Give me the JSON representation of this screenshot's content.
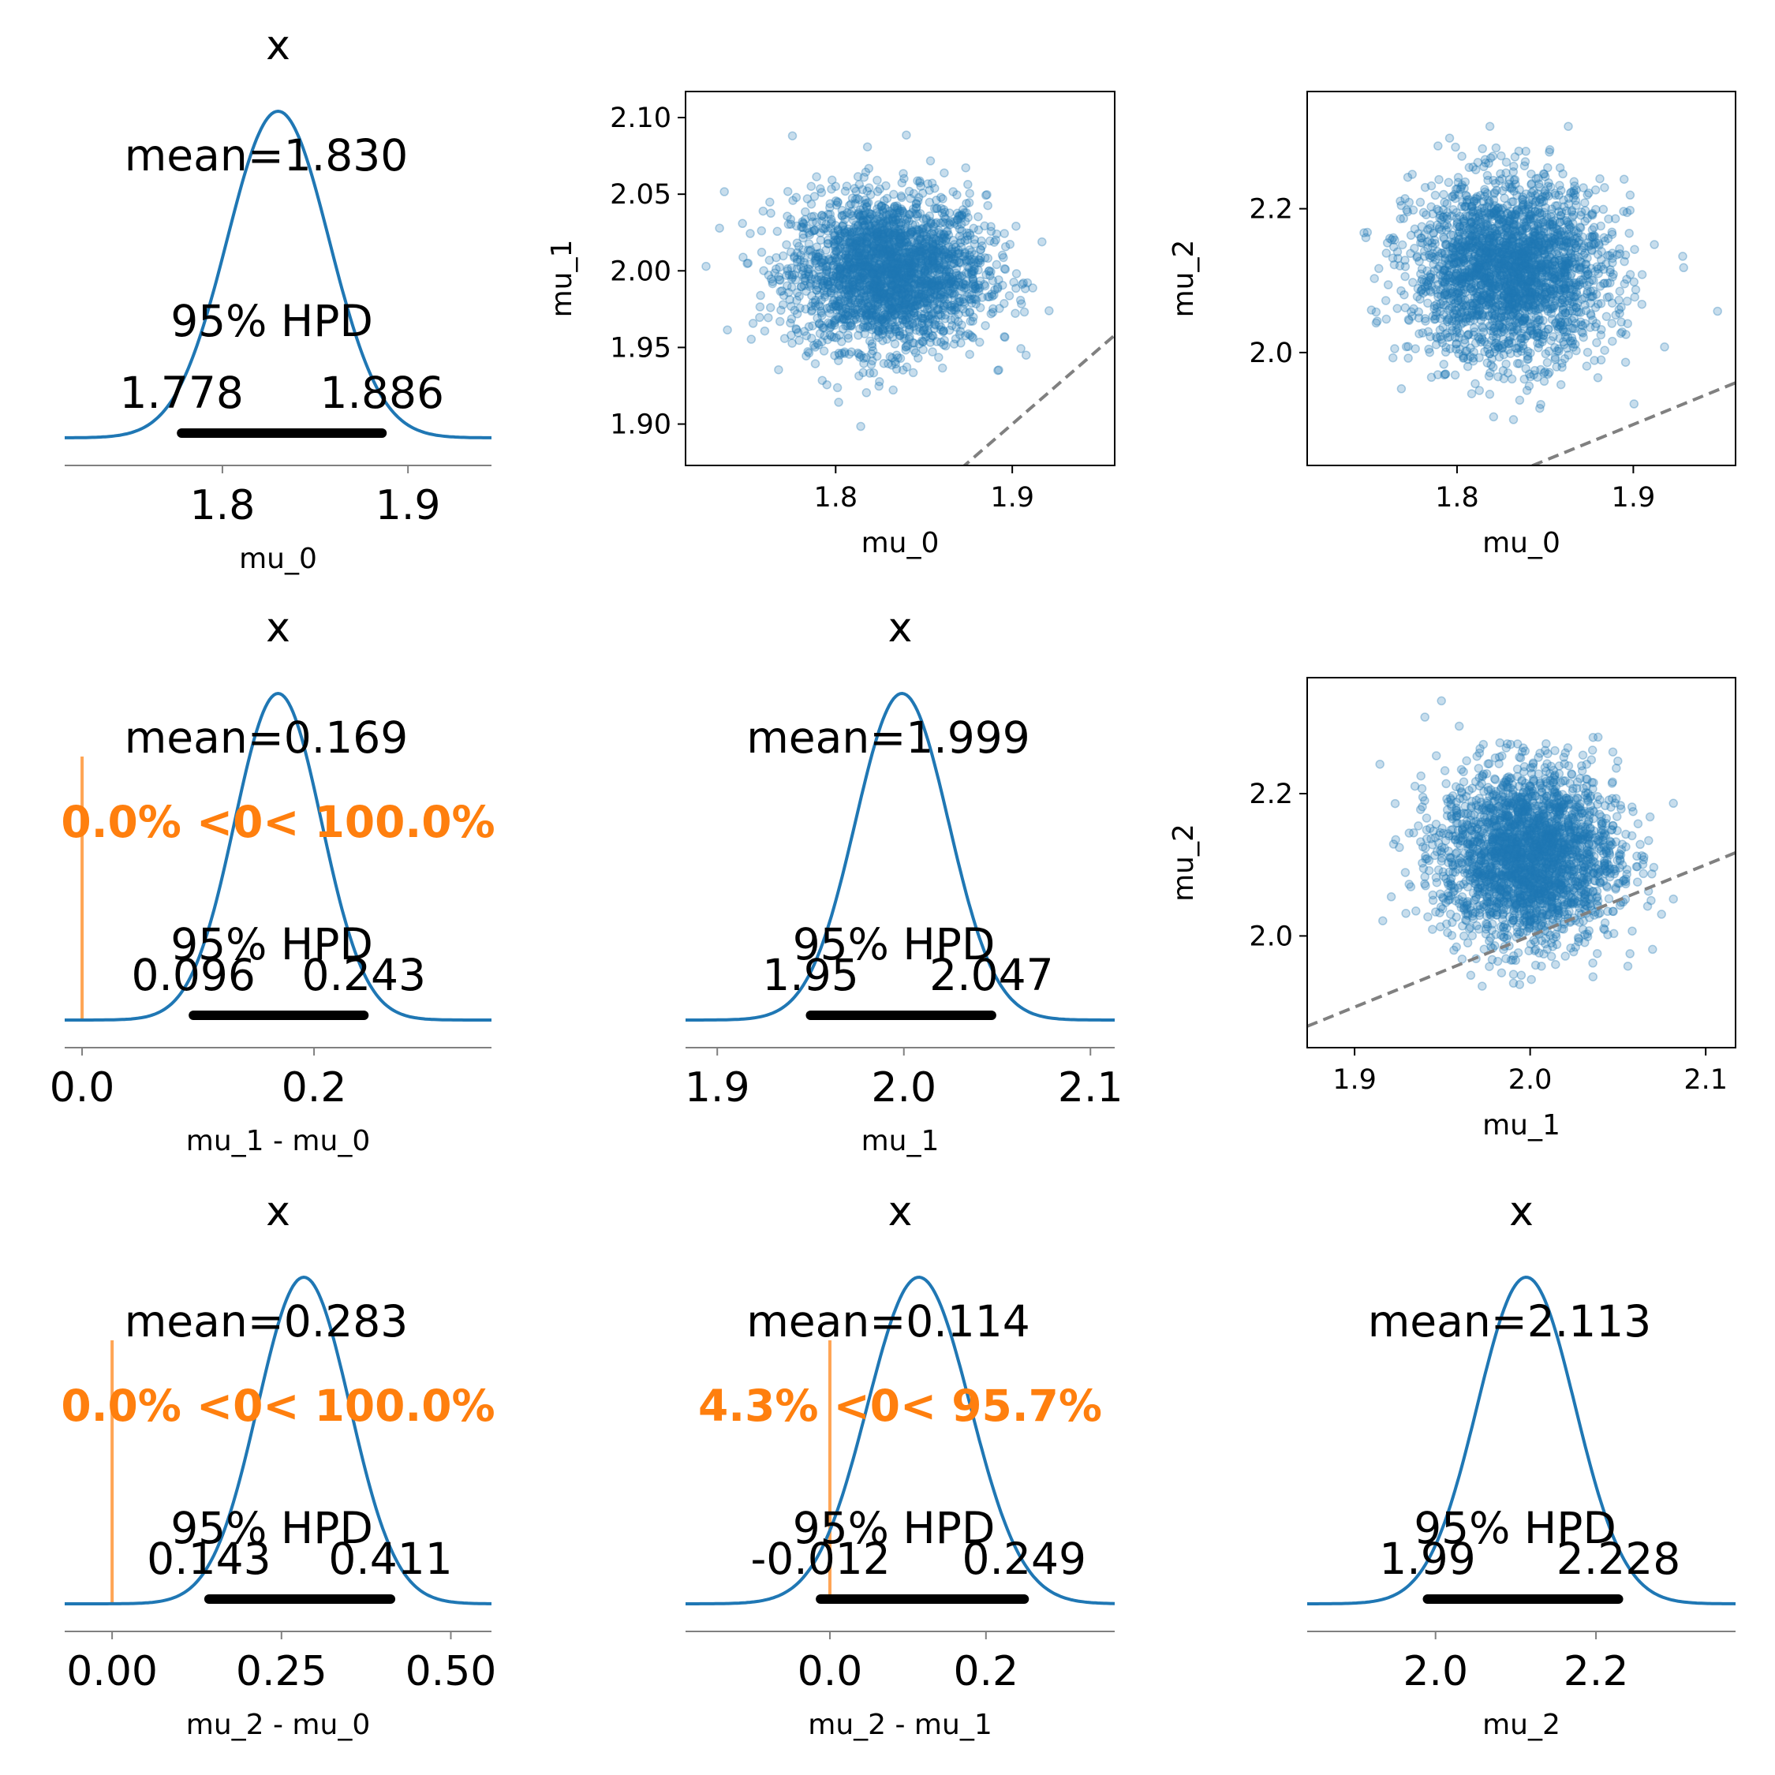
{
  "colors": {
    "kde": "#1f77b4",
    "hpd_bar": "#000000",
    "ref": "#ff7f0e",
    "diag": "#808080",
    "scatter": "#1f77b4",
    "axis": "#808080"
  },
  "chart_data": [
    {
      "type": "area",
      "title": "x",
      "mean_text": "mean=1.830",
      "mean": 1.83,
      "std": 0.0275,
      "hpd_label": "95% HPD",
      "hpd": [
        1.778,
        1.886
      ],
      "hpd_labels": [
        "1.778",
        "1.886"
      ],
      "xlim": [
        1.715,
        1.945
      ],
      "xticks": [
        1.8,
        1.9
      ],
      "xticklabels": [
        "1.8",
        "1.9"
      ],
      "xlabel": "mu_0"
    },
    {
      "type": "scatter",
      "xlabel": "mu_0",
      "ylabel": "mu_1",
      "xlim": [
        1.715,
        1.958
      ],
      "ylim": [
        1.873,
        2.117
      ],
      "xticks": [
        1.8,
        1.9
      ],
      "xticklabels": [
        "1.8",
        "1.9"
      ],
      "yticks": [
        1.9,
        1.95,
        2.0,
        2.05,
        2.1
      ],
      "yticklabels": [
        "1.90",
        "1.95",
        "2.00",
        "2.05",
        "2.10"
      ],
      "x_mean": 1.83,
      "x_sd": 0.0275,
      "y_mean": 1.999,
      "y_sd": 0.025,
      "n_points": 2500,
      "grid": false,
      "reference_line": "y = x"
    },
    {
      "type": "scatter",
      "xlabel": "mu_0",
      "ylabel": "mu_2",
      "xlim": [
        1.715,
        1.958
      ],
      "ylim": [
        1.843,
        2.363
      ],
      "xticks": [
        1.8,
        1.9
      ],
      "xticklabels": [
        "1.8",
        "1.9"
      ],
      "yticks": [
        2.0,
        2.2
      ],
      "yticklabels": [
        "2.0",
        "2.2"
      ],
      "x_mean": 1.83,
      "x_sd": 0.0275,
      "y_mean": 2.113,
      "y_sd": 0.061,
      "n_points": 2500,
      "grid": false,
      "reference_line": "y = x"
    },
    {
      "type": "area",
      "title": "x",
      "mean_text": "mean=0.169",
      "mean": 0.169,
      "std": 0.0375,
      "ref_text": "0.0% <0< 100.0%",
      "ref_value": 0,
      "hpd_label": "95% HPD",
      "hpd": [
        0.096,
        0.243
      ],
      "hpd_labels": [
        "0.096",
        "0.243"
      ],
      "xlim": [
        -0.015,
        0.353
      ],
      "xticks": [
        0.0,
        0.2
      ],
      "xticklabels": [
        "0.0",
        "0.2"
      ],
      "xlabel": "mu_1 - mu_0"
    },
    {
      "type": "area",
      "title": "x",
      "mean_text": "mean=1.999",
      "mean": 1.999,
      "std": 0.025,
      "hpd_label": "95% HPD",
      "hpd": [
        1.95,
        2.047
      ],
      "hpd_labels": [
        "1.95",
        "2.047"
      ],
      "xlim": [
        1.883,
        2.113
      ],
      "xticks": [
        1.9,
        2.0,
        2.1
      ],
      "xticklabels": [
        "1.9",
        "2.0",
        "2.1"
      ],
      "xlabel": "mu_1"
    },
    {
      "type": "scatter",
      "xlabel": "mu_1",
      "ylabel": "mu_2",
      "xlim": [
        1.873,
        2.117
      ],
      "ylim": [
        1.843,
        2.363
      ],
      "xticks": [
        1.9,
        2.0,
        2.1
      ],
      "xticklabels": [
        "1.9",
        "2.0",
        "2.1"
      ],
      "yticks": [
        2.0,
        2.2
      ],
      "yticklabels": [
        "2.0",
        "2.2"
      ],
      "x_mean": 1.999,
      "x_sd": 0.025,
      "y_mean": 2.113,
      "y_sd": 0.061,
      "n_points": 2500,
      "grid": false,
      "reference_line": "y = x"
    },
    {
      "type": "area",
      "title": "x",
      "mean_text": "mean=0.283",
      "mean": 0.283,
      "std": 0.068,
      "ref_text": "0.0% <0< 100.0%",
      "ref_value": 0,
      "hpd_label": "95% HPD",
      "hpd": [
        0.143,
        0.411
      ],
      "hpd_labels": [
        "0.143",
        "0.411"
      ],
      "xlim": [
        -0.07,
        0.56
      ],
      "xticks": [
        0.0,
        0.25,
        0.5
      ],
      "xticklabels": [
        "0.00",
        "0.25",
        "0.50"
      ],
      "xlabel": "mu_2 - mu_0"
    },
    {
      "type": "area",
      "title": "x",
      "mean_text": "mean=0.114",
      "mean": 0.114,
      "std": 0.066,
      "ref_text": "4.3% <0< 95.7%",
      "ref_value": 0,
      "hpd_label": "95% HPD",
      "hpd": [
        -0.012,
        0.249
      ],
      "hpd_labels": [
        "-0.012",
        "0.249"
      ],
      "xlim": [
        -0.185,
        0.365
      ],
      "xticks": [
        0.0,
        0.2
      ],
      "xticklabels": [
        "0.0",
        "0.2"
      ],
      "xlabel": "mu_2 - mu_1"
    },
    {
      "type": "area",
      "title": "x",
      "mean_text": "mean=2.113",
      "mean": 2.113,
      "std": 0.061,
      "hpd_label": "95% HPD",
      "hpd": [
        1.99,
        2.228
      ],
      "hpd_labels": [
        "1.99",
        "2.228"
      ],
      "xlim": [
        1.84,
        2.374
      ],
      "xticks": [
        2.0,
        2.2
      ],
      "xticklabels": [
        "2.0",
        "2.2"
      ],
      "xlabel": "mu_2"
    }
  ]
}
